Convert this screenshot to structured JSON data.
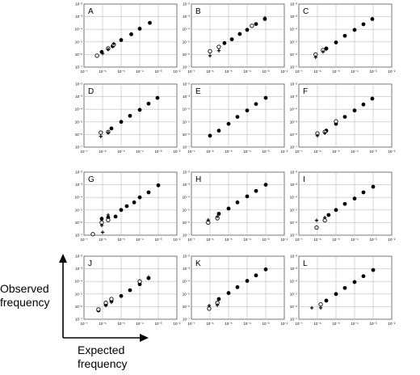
{
  "figure": {
    "ylabel_lines": [
      "Observed",
      "frequency"
    ],
    "xlabel_lines": [
      "Expected",
      "frequency"
    ],
    "tick_labels": [
      "10⁻⁷",
      "10⁻⁶",
      "10⁻⁵",
      "10⁻⁴",
      "10⁻³",
      "10⁻²"
    ],
    "marker_colors": {
      "filled": "#000000",
      "open": "#000000",
      "grid": "#bdbdbd"
    }
  },
  "chart_data": [
    {
      "type": "scatter",
      "panel_label": "A",
      "xscale": "log",
      "yscale": "log",
      "xlim": [
        1e-07,
        0.01
      ],
      "ylim": [
        1e-07,
        0.01
      ],
      "grid": true,
      "series": [
        {
          "marker": "filled",
          "x": [
            9e-07,
            3.5e-06,
            1e-05,
            3.5e-05,
            0.0001,
            0.00035
          ],
          "y": [
            1.6e-06,
            4.5e-06,
            1.4e-05,
            4e-05,
            0.00011,
            0.00032
          ]
        },
        {
          "marker": "open",
          "x": [
            5e-07,
            2e-06,
            4e-06
          ],
          "y": [
            8e-07,
            3e-06,
            6e-06
          ]
        },
        {
          "marker": "cross",
          "x": [
            1e-06,
            2e-06,
            4e-06
          ],
          "y": [
            1.2e-06,
            2.5e-06,
            7e-06
          ]
        }
      ]
    },
    {
      "type": "scatter",
      "panel_label": "B",
      "xscale": "log",
      "yscale": "log",
      "xlim": [
        1e-07,
        0.01
      ],
      "ylim": [
        1e-07,
        0.01
      ],
      "grid": true,
      "series": [
        {
          "marker": "filled",
          "x": [
            6e-06,
            1.5e-05,
            4e-05,
            0.0001,
            0.0003,
            0.0009
          ],
          "y": [
            8e-06,
            1.6e-05,
            4.2e-05,
            9e-05,
            0.00026,
            0.00065
          ]
        },
        {
          "marker": "open",
          "x": [
            1e-06,
            3e-06,
            0.00018
          ],
          "y": [
            1.8e-06,
            4e-06,
            0.00019
          ]
        },
        {
          "marker": "cross",
          "x": [
            1e-06,
            3e-06,
            0.0009
          ],
          "y": [
            8e-07,
            2e-06,
            0.0008
          ]
        }
      ]
    },
    {
      "type": "scatter",
      "panel_label": "C",
      "xscale": "log",
      "yscale": "log",
      "xlim": [
        1e-07,
        0.01
      ],
      "ylim": [
        1e-07,
        0.01
      ],
      "grid": true,
      "series": [
        {
          "marker": "filled",
          "x": [
            3e-06,
            1e-05,
            3e-05,
            0.0001,
            0.0003,
            0.0009
          ],
          "y": [
            3e-06,
            9e-06,
            3e-05,
            9e-05,
            0.00025,
            0.00065
          ]
        },
        {
          "marker": "open",
          "x": [
            8e-07,
            2e-06
          ],
          "y": [
            1e-06,
            2.2e-06
          ]
        },
        {
          "marker": "cross",
          "x": [
            8e-07,
            2e-06,
            3e-06
          ],
          "y": [
            6e-07,
            1.6e-06,
            2.6e-06
          ]
        }
      ]
    },
    {
      "type": "scatter",
      "panel_label": "D",
      "xscale": "log",
      "yscale": "log",
      "xlim": [
        1e-07,
        0.01
      ],
      "ylim": [
        1e-07,
        0.01
      ],
      "grid": true,
      "series": [
        {
          "marker": "filled",
          "x": [
            3e-06,
            1e-05,
            3e-05,
            0.0001,
            0.0003,
            0.0009
          ],
          "y": [
            3e-06,
            1e-05,
            3e-05,
            9e-05,
            0.00028,
            0.0008
          ]
        },
        {
          "marker": "open",
          "x": [
            8e-07,
            2e-06
          ],
          "y": [
            1.4e-06,
            1.6e-06
          ]
        },
        {
          "marker": "cross",
          "x": [
            8e-07,
            2e-06
          ],
          "y": [
            7e-07,
            1.4e-06
          ]
        }
      ]
    },
    {
      "type": "scatter",
      "panel_label": "E",
      "xscale": "log",
      "yscale": "log",
      "xlim": [
        1e-07,
        0.01
      ],
      "ylim": [
        1e-07,
        0.01
      ],
      "grid": true,
      "series": [
        {
          "marker": "filled",
          "x": [
            1e-06,
            3e-06,
            1e-05,
            3e-05,
            0.0001,
            0.0003,
            0.001
          ],
          "y": [
            8e-07,
            2e-06,
            7e-06,
            2.5e-05,
            8e-05,
            0.00026,
            0.0008
          ]
        }
      ]
    },
    {
      "type": "scatter",
      "panel_label": "F",
      "xscale": "log",
      "yscale": "log",
      "xlim": [
        1e-07,
        0.01
      ],
      "ylim": [
        1e-07,
        0.01
      ],
      "grid": true,
      "series": [
        {
          "marker": "filled",
          "x": [
            3e-06,
            1e-05,
            3e-05,
            0.0001,
            0.0003,
            0.0009
          ],
          "y": [
            2e-06,
            7e-06,
            2.5e-05,
            8e-05,
            0.00024,
            0.0007
          ]
        },
        {
          "marker": "open",
          "x": [
            1e-06,
            2.5e-06,
            1e-05
          ],
          "y": [
            1.2e-06,
            1.6e-06,
            1.1e-05
          ]
        },
        {
          "marker": "cross",
          "x": [
            1e-06,
            2.5e-06
          ],
          "y": [
            8e-07,
            1.3e-06
          ]
        }
      ]
    },
    {
      "type": "scatter",
      "panel_label": "G",
      "xscale": "log",
      "yscale": "log",
      "xlim": [
        1e-07,
        0.01
      ],
      "ylim": [
        1e-07,
        0.01
      ],
      "grid": true,
      "series": [
        {
          "marker": "filled",
          "x": [
            9e-07,
            2e-06,
            5e-06,
            1e-05,
            2e-05,
            5e-05,
            0.0001,
            0.0003,
            0.001
          ],
          "y": [
            2e-06,
            2.5e-06,
            3e-06,
            1e-05,
            2e-05,
            4e-05,
            0.0001,
            0.00025,
            0.0009
          ]
        },
        {
          "marker": "open",
          "x": [
            9e-07,
            2e-06,
            3e-07
          ],
          "y": [
            1e-06,
            1.6e-06,
            1.2e-07
          ]
        },
        {
          "marker": "cross",
          "x": [
            9e-07,
            2e-06,
            1e-06
          ],
          "y": [
            6e-07,
            4e-06,
            1.7e-07
          ]
        }
      ]
    },
    {
      "type": "scatter",
      "panel_label": "H",
      "xscale": "log",
      "yscale": "log",
      "xlim": [
        1e-07,
        0.01
      ],
      "ylim": [
        1e-07,
        0.01
      ],
      "grid": true,
      "series": [
        {
          "marker": "filled",
          "x": [
            3e-06,
            1e-05,
            3e-05,
            0.0001,
            0.0003,
            0.001
          ],
          "y": [
            5e-06,
            1.3e-05,
            4e-05,
            0.00012,
            0.00032,
            0.001
          ]
        },
        {
          "marker": "open",
          "x": [
            8e-07,
            2.5e-06
          ],
          "y": [
            1e-06,
            2.2e-06
          ]
        },
        {
          "marker": "cross",
          "x": [
            8e-07,
            2.5e-06
          ],
          "y": [
            1.6e-06,
            3e-06
          ]
        }
      ]
    },
    {
      "type": "scatter",
      "panel_label": "I",
      "xscale": "log",
      "yscale": "log",
      "xlim": [
        1e-07,
        0.01
      ],
      "ylim": [
        1e-07,
        0.01
      ],
      "grid": true,
      "series": [
        {
          "marker": "filled",
          "x": [
            4e-06,
            1e-05,
            3e-05,
            0.0001,
            0.0003,
            0.001
          ],
          "y": [
            4e-06,
            1e-05,
            3e-05,
            8e-05,
            0.00025,
            0.0007
          ]
        },
        {
          "marker": "open",
          "x": [
            9e-07,
            2.5e-06
          ],
          "y": [
            4e-07,
            1.5e-06
          ]
        },
        {
          "marker": "cross",
          "x": [
            9e-07,
            2.5e-06
          ],
          "y": [
            1.5e-06,
            2.5e-06
          ]
        }
      ]
    },
    {
      "type": "scatter",
      "panel_label": "J",
      "xscale": "log",
      "yscale": "log",
      "xlim": [
        1e-07,
        0.01
      ],
      "ylim": [
        1e-07,
        0.01
      ],
      "grid": true,
      "series": [
        {
          "marker": "filled",
          "x": [
            6e-07,
            1.5e-06,
            3e-06,
            1e-05,
            3e-05,
            0.0001,
            0.0003
          ],
          "y": [
            5e-07,
            1.5e-06,
            3e-06,
            7e-06,
            2e-05,
            6e-05,
            0.00018
          ]
        },
        {
          "marker": "open",
          "x": [
            6e-07,
            1.5e-06,
            3e-06,
            0.0001
          ],
          "y": [
            6e-07,
            2e-06,
            4e-06,
            0.0001
          ]
        },
        {
          "marker": "cross",
          "x": [
            1.5e-06,
            3e-06,
            0.0003
          ],
          "y": [
            1.2e-06,
            2.2e-06,
            0.00022
          ]
        }
      ]
    },
    {
      "type": "scatter",
      "panel_label": "K",
      "xscale": "log",
      "yscale": "log",
      "xlim": [
        1e-07,
        0.01
      ],
      "ylim": [
        1e-07,
        0.01
      ],
      "grid": true,
      "series": [
        {
          "marker": "filled",
          "x": [
            3e-06,
            1e-05,
            3e-05,
            0.0001,
            0.0003,
            0.001
          ],
          "y": [
            4e-06,
            1.2e-05,
            3.5e-05,
            0.00011,
            0.0003,
            0.0009
          ]
        },
        {
          "marker": "open",
          "x": [
            9e-07,
            2.5e-06
          ],
          "y": [
            7e-07,
            2e-06
          ]
        },
        {
          "marker": "cross",
          "x": [
            9e-07,
            2.5e-06
          ],
          "y": [
            1.2e-06,
            1.3e-06
          ]
        }
      ]
    },
    {
      "type": "scatter",
      "panel_label": "L",
      "xscale": "log",
      "yscale": "log",
      "xlim": [
        1e-07,
        0.01
      ],
      "ylim": [
        1e-07,
        0.01
      ],
      "grid": true,
      "series": [
        {
          "marker": "filled",
          "x": [
            3e-06,
            1e-05,
            3e-05,
            0.0001,
            0.0003,
            0.001
          ],
          "y": [
            3e-06,
            1e-05,
            3e-05,
            9e-05,
            0.00026,
            0.0008
          ]
        },
        {
          "marker": "open",
          "x": [
            1.5e-06
          ],
          "y": [
            1.5e-06
          ]
        },
        {
          "marker": "cross",
          "x": [
            5e-07,
            1.5e-06
          ],
          "y": [
            8e-07,
            8e-07
          ]
        }
      ]
    }
  ]
}
